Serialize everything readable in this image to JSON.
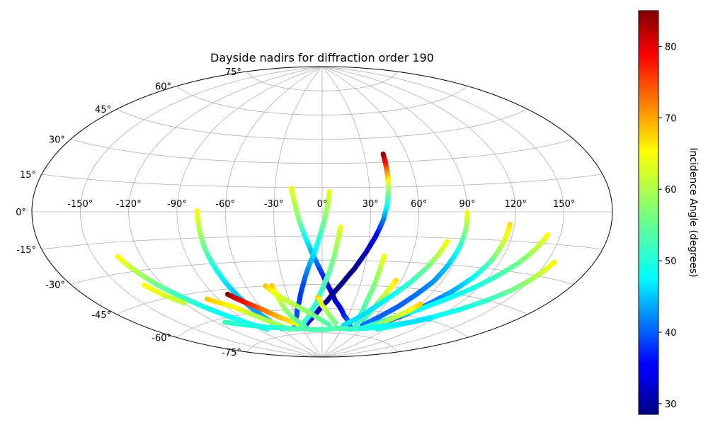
{
  "chart_data": {
    "type": "scatter",
    "projection": "aitoff",
    "title": "Dayside nadirs for diffraction order 190",
    "xlabel": "",
    "ylabel": "",
    "x_ticks": [
      -150,
      -120,
      -90,
      -60,
      -30,
      0,
      30,
      60,
      90,
      120,
      150
    ],
    "x_tick_labels": [
      "-150°",
      "-120°",
      "-90°",
      "-60°",
      "-30°",
      "0°",
      "30°",
      "60°",
      "90°",
      "120°",
      "150°"
    ],
    "y_ticks": [
      -75,
      -60,
      -45,
      -30,
      -15,
      0,
      15,
      30,
      45,
      60,
      75
    ],
    "y_tick_labels": [
      "-75°",
      "-60°",
      "-45°",
      "-30°",
      "-15°",
      "0°",
      "15°",
      "30°",
      "45°",
      "60°",
      "75°"
    ],
    "xlim": [
      -180,
      180
    ],
    "ylim": [
      -90,
      90
    ],
    "grid": true,
    "colorbar": {
      "label": "Incidence Angle (degrees)",
      "colormap": "jet",
      "range": [
        28.5,
        85
      ],
      "ticks": [
        30,
        40,
        50,
        60,
        70,
        80
      ],
      "tick_labels": [
        "30",
        "40",
        "50",
        "60",
        "70",
        "80"
      ]
    },
    "series": [
      {
        "points": [
          [
            -77.5,
            0.5,
            64
          ],
          [
            -77.0,
            -10,
            60
          ],
          [
            -76.5,
            -20,
            56
          ],
          [
            -75.5,
            -30,
            52
          ],
          [
            -74,
            -40,
            49
          ],
          [
            -72,
            -50,
            46
          ],
          [
            -69,
            -58,
            44
          ],
          [
            -65,
            -65,
            45
          ],
          [
            -60,
            -71,
            48
          ]
        ]
      },
      {
        "points": [
          [
            -19.5,
            14.5,
            63
          ],
          [
            -17,
            5,
            60
          ],
          [
            -14.5,
            -5,
            57
          ],
          [
            -11,
            -15,
            51
          ],
          [
            -7,
            -25,
            46
          ],
          [
            -2,
            -35,
            40
          ],
          [
            4,
            -45,
            35
          ],
          [
            12,
            -55,
            33
          ],
          [
            25,
            -64,
            37
          ],
          [
            42,
            -71,
            44
          ]
        ]
      },
      {
        "points": [
          [
            4.5,
            12.5,
            63
          ],
          [
            3.5,
            5,
            60
          ],
          [
            1.5,
            -5,
            57
          ],
          [
            -1.5,
            -15,
            53
          ],
          [
            -5,
            -25,
            49
          ],
          [
            -10,
            -35,
            44
          ],
          [
            -15,
            -45,
            40
          ],
          [
            -21,
            -55,
            38
          ],
          [
            -29,
            -64,
            40
          ],
          [
            -40,
            -71,
            43
          ]
        ]
      },
      {
        "points": [
          [
            43.5,
            35,
            85
          ],
          [
            43,
            25,
            72
          ],
          [
            42,
            15,
            60
          ],
          [
            40.5,
            5,
            52
          ],
          [
            38,
            -5,
            43
          ],
          [
            34,
            -15,
            36
          ],
          [
            29,
            -25,
            32
          ],
          [
            23,
            -35,
            29.5
          ],
          [
            15,
            -45,
            29
          ],
          [
            5,
            -55,
            30
          ],
          [
            -8,
            -64,
            33
          ],
          [
            -25,
            -71,
            37
          ]
        ]
      },
      {
        "points": [
          [
            11.5,
            -9.5,
            63
          ],
          [
            10,
            -18,
            60
          ],
          [
            8,
            -28,
            57
          ],
          [
            5,
            -38,
            55
          ],
          [
            0,
            -48,
            53
          ],
          [
            -6,
            -57,
            52
          ],
          [
            -16,
            -65,
            52
          ],
          [
            -30,
            -71,
            52
          ]
        ]
      },
      {
        "points": [
          [
            41.5,
            -27,
            64
          ],
          [
            41,
            -35,
            60
          ],
          [
            41,
            -45,
            57
          ],
          [
            41,
            -55,
            55
          ],
          [
            43,
            -64,
            53
          ],
          [
            48,
            -71,
            53
          ]
        ]
      },
      {
        "points": [
          [
            -135,
            -22,
            64
          ],
          [
            -130,
            -30,
            60
          ],
          [
            -124,
            -38,
            56
          ],
          [
            -117,
            -45,
            53
          ],
          [
            -110,
            -52,
            51
          ],
          [
            -101,
            -59,
            50
          ],
          [
            -91,
            -65,
            51
          ],
          [
            -80,
            -70,
            52
          ]
        ]
      },
      {
        "points": [
          [
            -133,
            -37,
            64
          ],
          [
            -128,
            -43,
            62
          ],
          [
            -120,
            -49,
            60
          ]
        ]
      },
      {
        "points": [
          [
            -99,
            -49,
            67
          ],
          [
            -95,
            -51,
            66
          ],
          [
            -85,
            -55,
            64
          ],
          [
            -75,
            -61,
            60
          ],
          [
            -63,
            -67,
            59
          ],
          [
            -50,
            -72,
            58
          ]
        ]
      },
      {
        "points": [
          [
            -79,
            -48,
            85
          ],
          [
            -75,
            -51,
            80
          ],
          [
            -68,
            -55,
            76
          ],
          [
            -60,
            -59,
            72
          ],
          [
            -50,
            -64,
            68
          ],
          [
            -38,
            -68,
            65
          ],
          [
            -25,
            -71,
            63
          ]
        ]
      },
      {
        "points": [
          [
            -40,
            -45,
            67
          ],
          [
            -39,
            -52,
            62
          ],
          [
            -38,
            -60,
            58
          ],
          [
            -34,
            -66,
            56
          ],
          [
            -25,
            -71,
            54
          ]
        ]
      },
      {
        "points": [
          [
            -45,
            -45,
            67
          ],
          [
            -40,
            -50,
            63
          ],
          [
            -30,
            -56,
            60
          ],
          [
            -18,
            -61,
            58
          ],
          [
            -5,
            -66,
            56
          ],
          [
            10,
            -70,
            54
          ]
        ]
      },
      {
        "points": [
          [
            -4,
            -53,
            66
          ],
          [
            0,
            -58,
            62
          ],
          [
            8,
            -64,
            58
          ],
          [
            18,
            -69,
            56
          ]
        ]
      },
      {
        "points": [
          [
            56,
            -41,
            66
          ],
          [
            54,
            -48,
            62
          ],
          [
            52,
            -55,
            58
          ],
          [
            51,
            -61,
            55
          ],
          [
            49,
            -66,
            53
          ]
        ]
      },
      {
        "points": [
          [
            80,
            -17,
            64
          ],
          [
            77,
            -25,
            60
          ],
          [
            73,
            -33,
            56
          ],
          [
            68,
            -41,
            53
          ],
          [
            62,
            -48,
            51
          ],
          [
            55,
            -55,
            49
          ],
          [
            48,
            -61,
            48
          ],
          [
            40,
            -66,
            48
          ],
          [
            30,
            -70,
            48
          ]
        ]
      },
      {
        "points": [
          [
            90,
            -0.5,
            63
          ],
          [
            90,
            -10,
            58
          ],
          [
            89,
            -20,
            52
          ],
          [
            87,
            -30,
            47
          ],
          [
            84,
            -40,
            44
          ],
          [
            79,
            -48,
            42
          ],
          [
            73,
            -56,
            41
          ],
          [
            65,
            -63,
            41
          ],
          [
            55,
            -69,
            42
          ]
        ]
      },
      {
        "points": [
          [
            117,
            -6.5,
            66
          ],
          [
            116,
            -15,
            62
          ],
          [
            114,
            -25,
            56
          ],
          [
            110,
            -35,
            50
          ],
          [
            104,
            -44,
            45
          ],
          [
            97,
            -52,
            42
          ],
          [
            89,
            -59,
            41
          ],
          [
            79,
            -65,
            41
          ],
          [
            68,
            -70,
            42
          ]
        ]
      },
      {
        "points": [
          [
            142,
            -11,
            64
          ],
          [
            138,
            -18,
            60
          ],
          [
            132,
            -26,
            56
          ],
          [
            124,
            -34,
            53
          ],
          [
            115,
            -42,
            51
          ],
          [
            105,
            -49,
            50
          ],
          [
            94,
            -56,
            50
          ],
          [
            83,
            -61,
            50
          ],
          [
            72,
            -66,
            51
          ],
          [
            61,
            -70,
            52
          ]
        ]
      },
      {
        "points": [
          [
            155,
            -23,
            65
          ],
          [
            151,
            -30,
            60
          ],
          [
            145,
            -38,
            56
          ],
          [
            137,
            -45,
            53
          ],
          [
            127,
            -52,
            51
          ],
          [
            116,
            -58,
            50
          ],
          [
            104,
            -63,
            50
          ],
          [
            92,
            -67,
            51
          ],
          [
            80,
            -70,
            52
          ]
        ]
      },
      {
        "points": [
          [
            90,
            -53,
            67
          ],
          [
            86,
            -58,
            63
          ],
          [
            80,
            -63,
            60
          ],
          [
            72,
            -68,
            57
          ]
        ]
      },
      {
        "points": [
          [
            -112,
            -62,
            53
          ],
          [
            -100,
            -65,
            52
          ],
          [
            -88,
            -67,
            51
          ],
          [
            -76,
            -69,
            51
          ],
          [
            -64,
            -70,
            52
          ],
          [
            -52,
            -71,
            53
          ],
          [
            -40,
            -72,
            54
          ],
          [
            -28,
            -72,
            54
          ],
          [
            -16,
            -73,
            54
          ],
          [
            -4,
            -73,
            54
          ],
          [
            8,
            -73,
            54
          ],
          [
            20,
            -72,
            54
          ],
          [
            32,
            -72,
            54
          ],
          [
            44,
            -72,
            53
          ],
          [
            56,
            -71,
            52
          ],
          [
            68,
            -70,
            51
          ],
          [
            80,
            -68,
            50
          ],
          [
            92,
            -66,
            49
          ],
          [
            104,
            -63,
            48
          ],
          [
            116,
            -59,
            48
          ]
        ]
      }
    ]
  }
}
